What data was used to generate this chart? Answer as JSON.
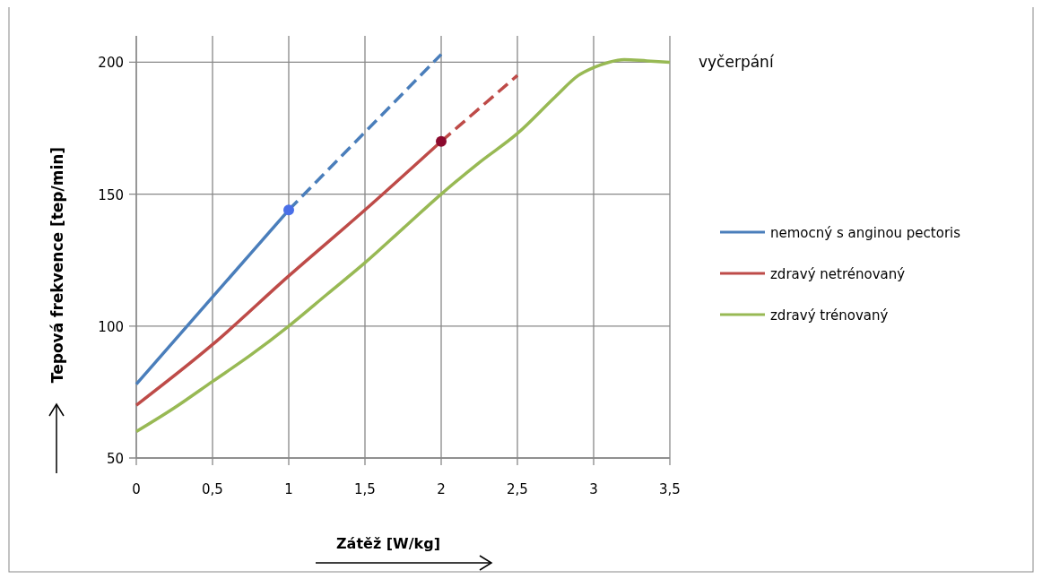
{
  "chart_data": {
    "type": "line",
    "xlabel": "Zátěž [W/kg]",
    "ylabel": "Tepová frekvence  [tep/min]",
    "xlim": [
      0,
      3.5
    ],
    "xticks": [
      0,
      {
        "value": 0.5,
        "label": "0,5"
      },
      1,
      {
        "value": 1.5,
        "label": "1,5"
      },
      2,
      {
        "value": 2.5,
        "label": "2,5"
      },
      3,
      {
        "value": 3.5,
        "label": "3,5"
      }
    ],
    "ylim": [
      50,
      210
    ],
    "yticks": [
      50,
      100,
      150,
      200
    ],
    "grid": true,
    "legend": "right",
    "annotations": [
      {
        "text": "vyčerpání",
        "x": 3.5,
        "y": 200
      }
    ],
    "series": [
      {
        "name": "nemocný s anginou pectoris",
        "color": "#4a7ebb",
        "x": [
          0,
          0.5,
          1
        ],
        "values": [
          78,
          111,
          144
        ]
      },
      {
        "name": "zdravý netrénovaný",
        "color": "#be4b48",
        "x": [
          0,
          0.5,
          1,
          1.5,
          2
        ],
        "values": [
          70,
          93,
          119,
          144,
          170
        ]
      },
      {
        "name": "zdravý trénovaný",
        "color": "#98b954",
        "x": [
          0,
          0.25,
          0.5,
          0.75,
          1,
          1.25,
          1.5,
          1.75,
          2,
          2.25,
          2.5,
          2.75,
          2.9,
          3,
          3.1,
          3.2,
          3.35,
          3.5
        ],
        "values": [
          60,
          69,
          79,
          89,
          100,
          112,
          124,
          137,
          150,
          162,
          173,
          187,
          195,
          198,
          200,
          201,
          200.5,
          200
        ]
      },
      {
        "color": "#4a7ebb",
        "x": [
          1,
          2
        ],
        "values": [
          144,
          203
        ],
        "line_style": "dashed"
      },
      {
        "color": "#be4b48",
        "x": [
          2,
          2.5
        ],
        "values": [
          170,
          195
        ],
        "line_style": "dashed"
      },
      {
        "type": "scatter",
        "color": "#4a6fe8",
        "x": [
          1
        ],
        "values": [
          144
        ],
        "marker": "circle"
      },
      {
        "type": "scatter",
        "color": "#8b0a2e",
        "x": [
          2
        ],
        "values": [
          170
        ],
        "marker": "circle"
      }
    ]
  }
}
